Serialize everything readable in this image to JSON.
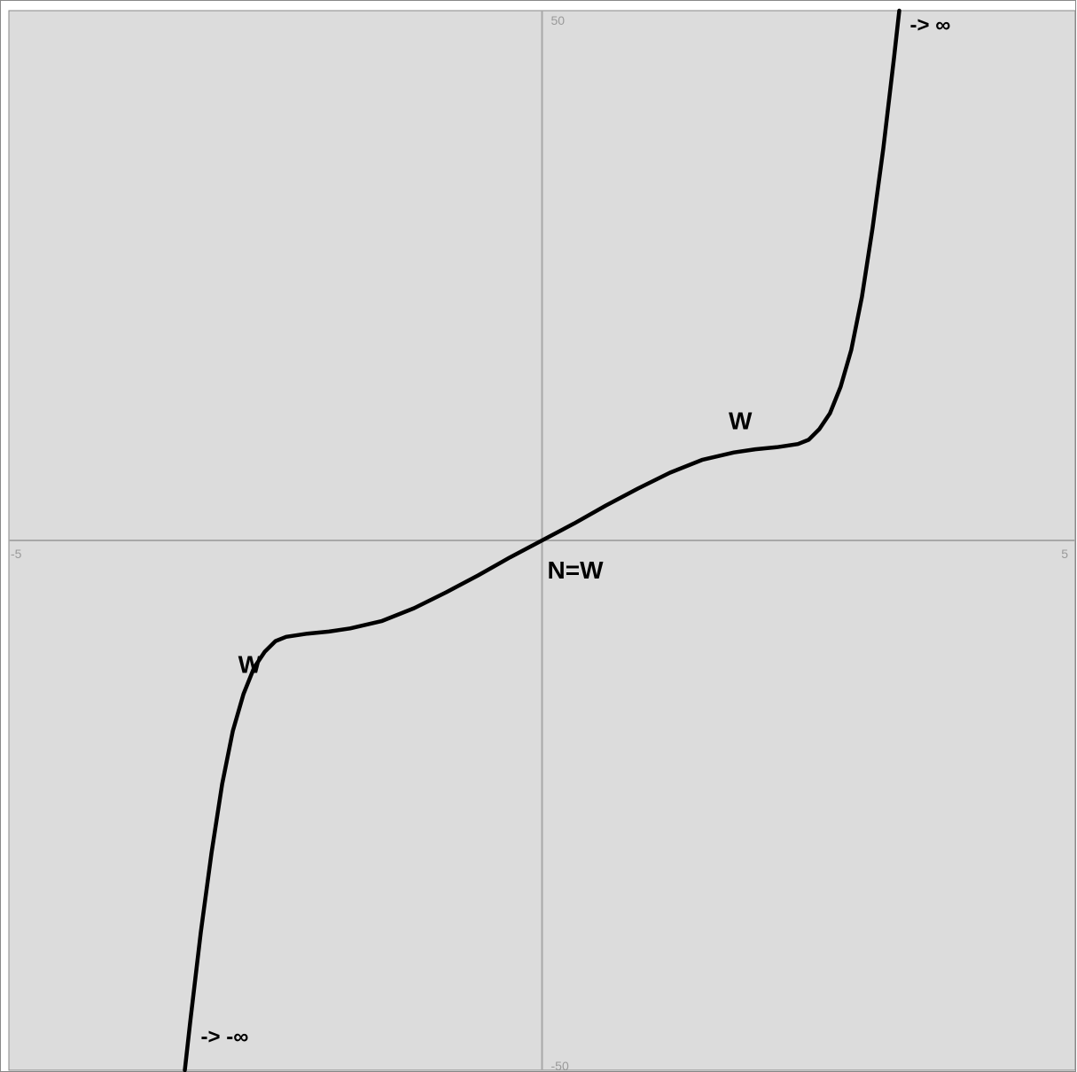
{
  "chart_data": {
    "type": "line",
    "title": "",
    "xlabel": "",
    "ylabel": "",
    "xlim": [
      -5,
      5
    ],
    "ylim": [
      -50,
      50
    ],
    "grid": false,
    "x_tick_labels": {
      "min": "-5",
      "max": "5"
    },
    "y_tick_labels": {
      "max": "50",
      "min": "-50"
    },
    "series": [
      {
        "points": [
          [
            -3.35,
            -50
          ],
          [
            -3.3,
            -45.5
          ],
          [
            -3.2,
            -37
          ],
          [
            -3.1,
            -29.5
          ],
          [
            -3.0,
            -23
          ],
          [
            -2.9,
            -18
          ],
          [
            -2.8,
            -14.5
          ],
          [
            -2.7,
            -12
          ],
          [
            -2.6,
            -10.5
          ],
          [
            -2.5,
            -9.5
          ],
          [
            -2.4,
            -9.1
          ],
          [
            -2.2,
            -8.8
          ],
          [
            -2.0,
            -8.6
          ],
          [
            -1.8,
            -8.3
          ],
          [
            -1.5,
            -7.6
          ],
          [
            -1.2,
            -6.4
          ],
          [
            -0.9,
            -4.9
          ],
          [
            -0.6,
            -3.3
          ],
          [
            -0.3,
            -1.6
          ],
          [
            0,
            0
          ],
          [
            0.3,
            1.6
          ],
          [
            0.6,
            3.3
          ],
          [
            0.9,
            4.9
          ],
          [
            1.2,
            6.4
          ],
          [
            1.5,
            7.6
          ],
          [
            1.8,
            8.3
          ],
          [
            2.0,
            8.6
          ],
          [
            2.2,
            8.8
          ],
          [
            2.4,
            9.1
          ],
          [
            2.5,
            9.5
          ],
          [
            2.6,
            10.5
          ],
          [
            2.7,
            12
          ],
          [
            2.8,
            14.5
          ],
          [
            2.9,
            18
          ],
          [
            3.0,
            23
          ],
          [
            3.1,
            29.5
          ],
          [
            3.2,
            37
          ],
          [
            3.3,
            45.5
          ],
          [
            3.35,
            50
          ]
        ]
      }
    ],
    "annotations": [
      {
        "text": "-> ∞",
        "x": 3.45,
        "y": 48
      },
      {
        "text": "W",
        "x": 1.75,
        "y": 10.5
      },
      {
        "text": "N=W",
        "x": 0.05,
        "y": -3.6
      },
      {
        "text": "W",
        "x": -2.85,
        "y": -12.5
      },
      {
        "text": "-> -∞",
        "x": -3.2,
        "y": -47.5
      }
    ]
  },
  "colors": {
    "plot_background": "#dcdcdc",
    "axis": "#a8a8a8",
    "curve": "#000000",
    "frame": "#888888"
  }
}
